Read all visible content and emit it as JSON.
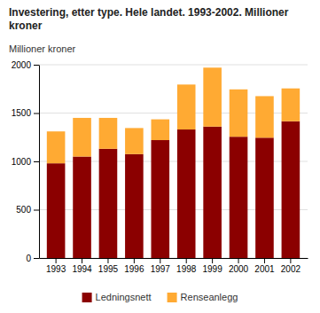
{
  "chart_data": {
    "type": "bar",
    "stacked": true,
    "title": "Investering, etter type. Hele landet. 1993-2002. Millioner kroner",
    "y_label": "Millioner kroner",
    "categories": [
      "1993",
      "1994",
      "1995",
      "1996",
      "1997",
      "1998",
      "1999",
      "2000",
      "2001",
      "2002"
    ],
    "series": [
      {
        "name": "Ledningsnett",
        "color": "#8B0000",
        "values": [
          980,
          1050,
          1130,
          1075,
          1220,
          1330,
          1360,
          1255,
          1245,
          1415
        ]
      },
      {
        "name": "Renseanlegg",
        "color": "#FFAA33",
        "values": [
          330,
          400,
          320,
          270,
          215,
          465,
          610,
          490,
          430,
          340
        ]
      }
    ],
    "ylim": [
      0,
      2000
    ],
    "yticks": [
      0,
      500,
      1000,
      1500,
      2000
    ],
    "grid": true,
    "legend": "bottom"
  }
}
